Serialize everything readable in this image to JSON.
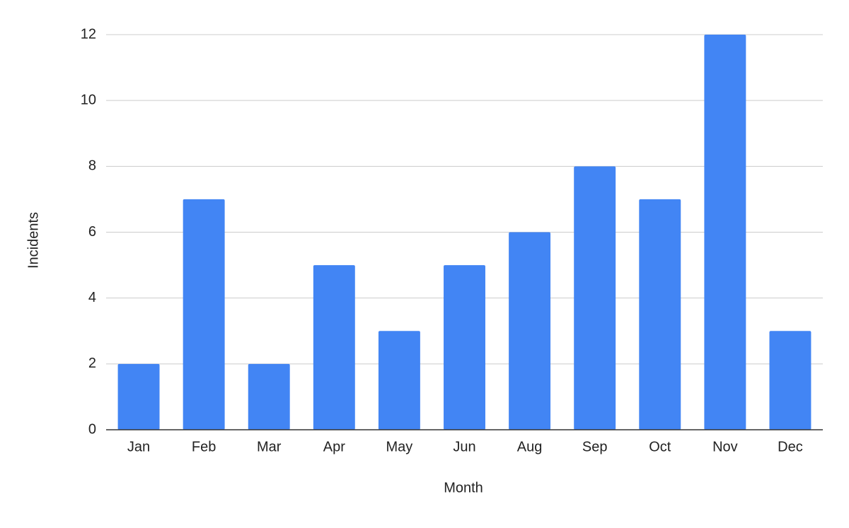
{
  "chart_data": {
    "type": "bar",
    "x_label": "Month",
    "y_label": "Incidents",
    "categories": [
      "Jan",
      "Feb",
      "Mar",
      "Apr",
      "May",
      "Jun",
      "Aug",
      "Sep",
      "Oct",
      "Nov",
      "Dec"
    ],
    "values": [
      2,
      7,
      2,
      5,
      3,
      5,
      6,
      8,
      7,
      12,
      3
    ],
    "color": "#4285f4",
    "ylim": [
      0,
      12
    ],
    "yticks": [
      0,
      2,
      4,
      6,
      8,
      10,
      12
    ],
    "grid": true
  }
}
